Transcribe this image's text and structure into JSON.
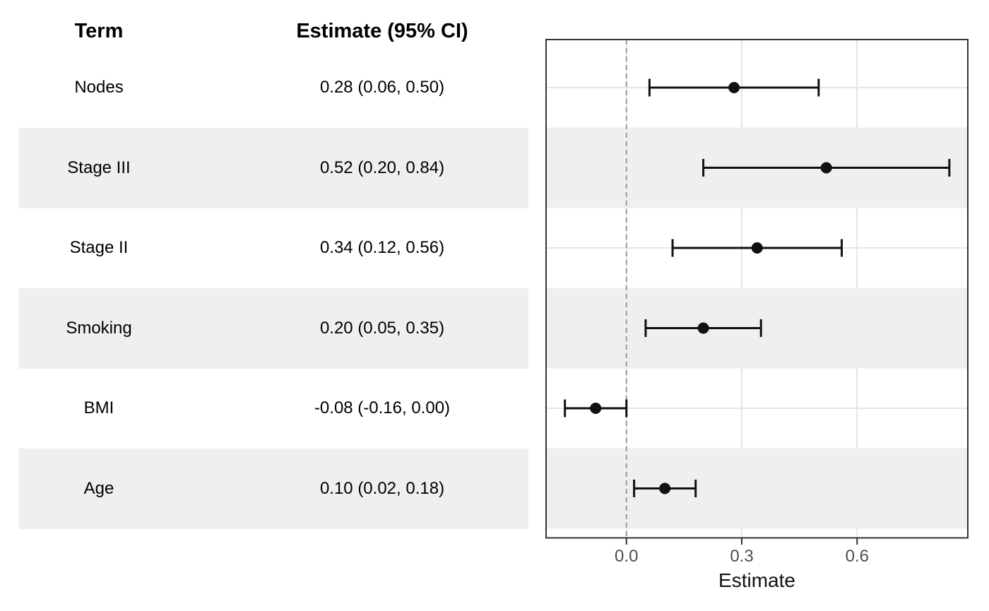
{
  "table": {
    "term_header": "Term",
    "estimate_header": "Estimate (95% CI)"
  },
  "chart_data": {
    "type": "forest",
    "title": "",
    "xlabel": "Estimate",
    "x_ticks": [
      0.0,
      0.3,
      0.6
    ],
    "xlim": [
      -0.209,
      0.888
    ],
    "refline_x": 0,
    "grid": true,
    "legend": false,
    "rows": [
      {
        "term": "Nodes",
        "estimate": 0.28,
        "ci_low": 0.06,
        "ci_high": 0.5,
        "ci_text": "0.28 (0.06, 0.50)",
        "striped": false
      },
      {
        "term": "Stage III",
        "estimate": 0.52,
        "ci_low": 0.2,
        "ci_high": 0.84,
        "ci_text": "0.52 (0.20, 0.84)",
        "striped": true
      },
      {
        "term": "Stage II",
        "estimate": 0.34,
        "ci_low": 0.12,
        "ci_high": 0.56,
        "ci_text": "0.34 (0.12, 0.56)",
        "striped": false
      },
      {
        "term": "Smoking",
        "estimate": 0.2,
        "ci_low": 0.05,
        "ci_high": 0.35,
        "ci_text": "0.20 (0.05, 0.35)",
        "striped": true
      },
      {
        "term": "BMI",
        "estimate": -0.08,
        "ci_low": -0.16,
        "ci_high": 0.0,
        "ci_text": "-0.08 (-0.16, 0.00)",
        "striped": false
      },
      {
        "term": "Age",
        "estimate": 0.1,
        "ci_low": 0.02,
        "ci_high": 0.18,
        "ci_text": "0.10 (0.02, 0.18)",
        "striped": true
      }
    ],
    "colors": {
      "stripe": "#EFEFEF",
      "gridline": "#E6E6E6",
      "refline": "#9B9B9B",
      "panel_border": "#333333",
      "marker": "#111111",
      "tick_text": "#4D4D4D",
      "axis_title_text": "#111111",
      "tick_mark": "#333333",
      "table_text": "#000000"
    }
  }
}
